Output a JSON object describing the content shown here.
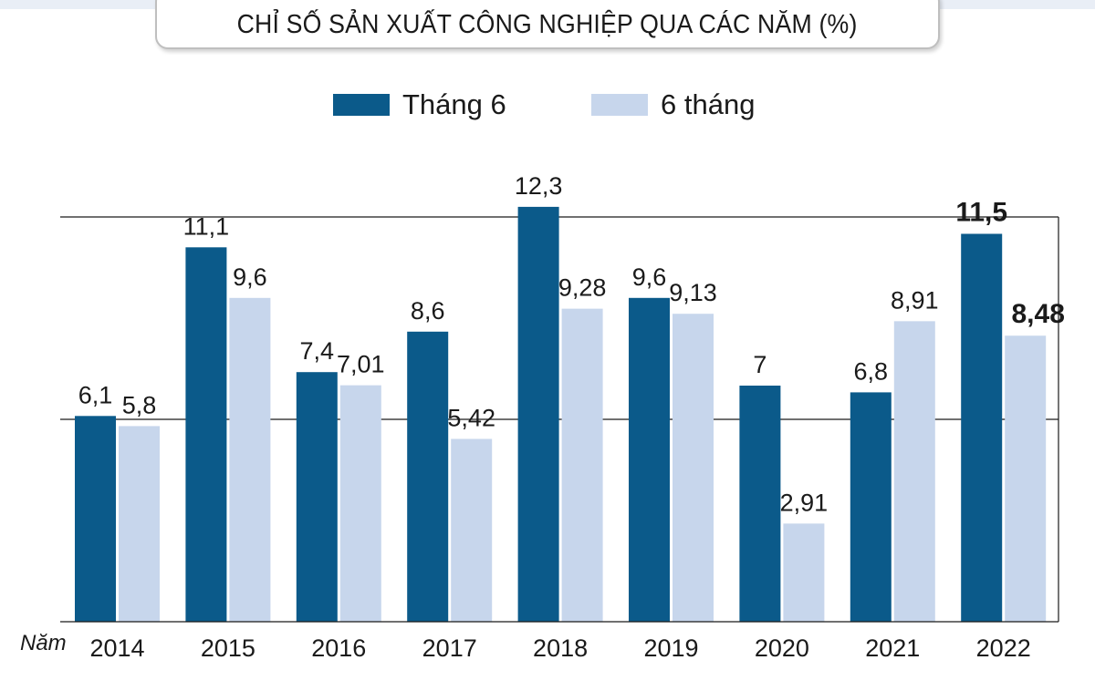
{
  "colors": {
    "june": "#0b5a8a",
    "six_months": "#c7d6ec",
    "axis": "#1a1a1a"
  },
  "title": "CHỈ SỐ SẢN XUẤT CÔNG NGHIỆP QUA CÁC NĂM (%)",
  "legend": [
    {
      "label": "Tháng 6",
      "color": "#0b5a8a"
    },
    {
      "label": "6 tháng",
      "color": "#c7d6ec"
    }
  ],
  "xaxis_title": "Năm",
  "chart_data": {
    "type": "bar",
    "title": "CHỈ SỐ SẢN XUẤT CÔNG NGHIỆP QUA CÁC NĂM (%)",
    "xlabel": "Năm",
    "ylabel": "",
    "categories": [
      "2014",
      "2015",
      "2016",
      "2017",
      "2018",
      "2019",
      "2020",
      "2021",
      "2022"
    ],
    "series": [
      {
        "name": "Tháng 6",
        "values": [
          6.1,
          11.1,
          7.4,
          8.6,
          12.3,
          9.6,
          7,
          6.8,
          11.5
        ],
        "labels": [
          "6,1",
          "11,1",
          "7,4",
          "8,6",
          "12,3",
          "9,6",
          "7",
          "6,8",
          "11,5"
        ]
      },
      {
        "name": "6 tháng",
        "values": [
          5.8,
          9.6,
          7.01,
          5.42,
          9.28,
          9.13,
          2.91,
          8.91,
          8.48
        ],
        "labels": [
          "5,8",
          "9,6",
          "7,01",
          "5,42",
          "9,28",
          "9,13",
          "2,91",
          "8,91",
          "8,48"
        ]
      }
    ],
    "ylim": [
      0,
      12.5
    ],
    "gridlines": [
      6,
      12
    ],
    "grid": true,
    "legend_position": "top-center",
    "highlight_category": "2022"
  }
}
